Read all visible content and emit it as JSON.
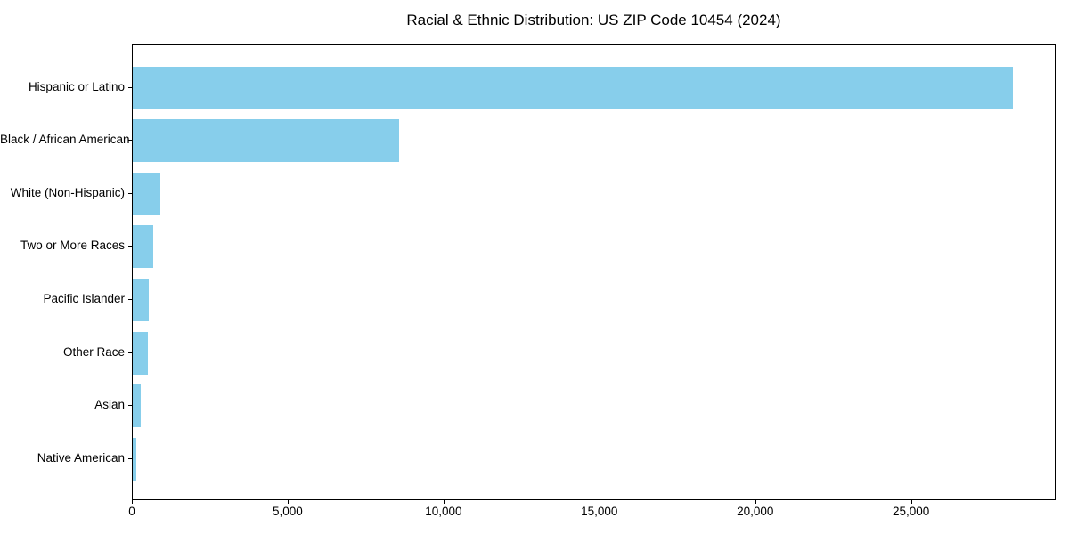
{
  "title": "Racial & Ethnic Distribution: US ZIP Code 10454 (2024)",
  "chart_data": {
    "type": "bar",
    "orientation": "horizontal",
    "title": "Racial & Ethnic Distribution: US ZIP Code 10454 (2024)",
    "categories": [
      "Hispanic or Latino",
      "Black / African American",
      "White (Non-Hispanic)",
      "Two or More Races",
      "Pacific Islander",
      "Other Race",
      "Asian",
      "Native American"
    ],
    "values": [
      28250,
      8540,
      895,
      650,
      515,
      495,
      250,
      125
    ],
    "xlabel": "",
    "ylabel": "",
    "xlim": [
      0,
      29640
    ],
    "x_ticks": [
      0,
      5000,
      10000,
      15000,
      20000,
      25000
    ],
    "x_tick_labels": [
      "0",
      "5,000",
      "10,000",
      "15,000",
      "20,000",
      "25,000"
    ],
    "bar_color": "#87CEEB",
    "background_color": "#ffffff",
    "spine_color": "#000000",
    "grid": false,
    "legend": null
  }
}
